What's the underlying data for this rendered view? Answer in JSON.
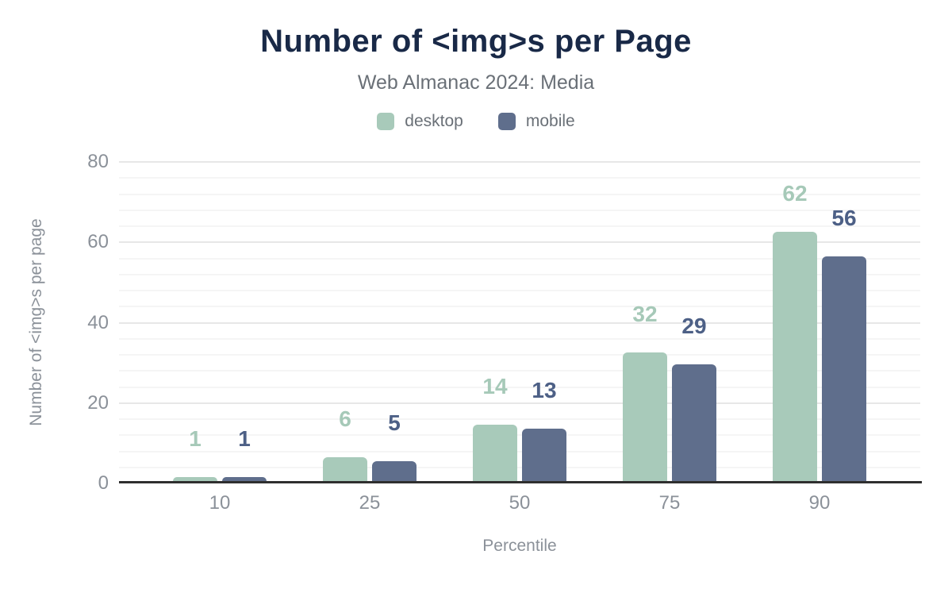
{
  "chart_data": {
    "type": "bar",
    "title": "Number of <img>s per Page",
    "subtitle": "Web Almanac 2024: Media",
    "categories": [
      "10",
      "25",
      "50",
      "75",
      "90"
    ],
    "series": [
      {
        "name": "desktop",
        "color": "#a8caba",
        "label_color": "#a6c9b8",
        "values": [
          1,
          6,
          14,
          32,
          62
        ]
      },
      {
        "name": "mobile",
        "color": "#5f6e8c",
        "label_color": "#4d6086",
        "values": [
          1,
          5,
          13,
          29,
          56
        ]
      }
    ],
    "xlabel": "Percentile",
    "ylabel": "Number of <img>s per page",
    "ylim": [
      0,
      80
    ],
    "yticks": [
      0,
      20,
      40,
      60,
      80
    ],
    "minor_tick_interval": 4,
    "grid": true,
    "legend_position": "top",
    "title_color": "#192947",
    "subtitle_color": "#6a7077",
    "legend_text_color": "#6a7077",
    "tick_label_color": "#8b9199",
    "axis_title_color": "#8b9199",
    "axis_line_color": "#2f2f2f",
    "major_grid_color": "#e7e7e7",
    "minor_grid_color": "#f5f5f5"
  }
}
